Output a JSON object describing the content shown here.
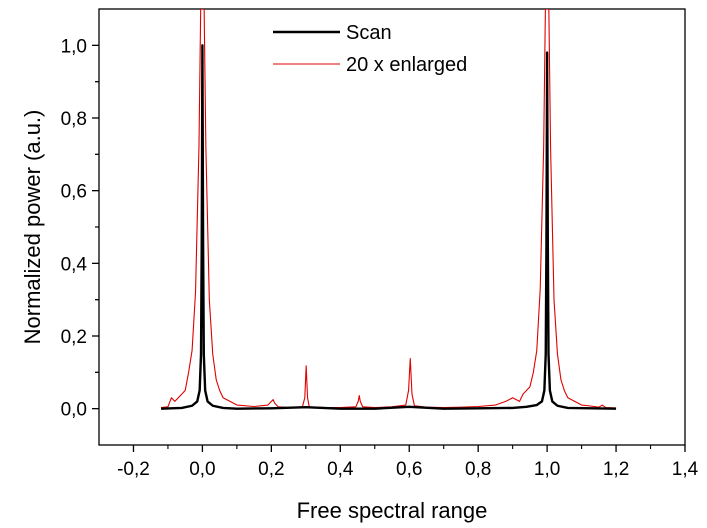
{
  "chart_data": {
    "type": "line",
    "xlabel": "Free spectral range",
    "ylabel": "Normalized power (a.u.)",
    "xlim": [
      -0.3,
      1.4
    ],
    "ylim": [
      -0.1,
      1.1
    ],
    "x_ticks": [
      "-0,2",
      "0,0",
      "0,2",
      "0,4",
      "0,6",
      "0,8",
      "1,0",
      "1,2",
      "1,4"
    ],
    "x_tick_values": [
      -0.2,
      0.0,
      0.2,
      0.4,
      0.6,
      0.8,
      1.0,
      1.2,
      1.4
    ],
    "y_ticks": [
      "0,0",
      "0,2",
      "0,4",
      "0,6",
      "0,8",
      "1,0"
    ],
    "y_tick_values": [
      0.0,
      0.2,
      0.4,
      0.6,
      0.8,
      1.0
    ],
    "grid": false,
    "legend_position": "top-center",
    "series": [
      {
        "name": "Scan",
        "color": "#000000",
        "x": [
          -0.12,
          -0.06,
          -0.03,
          -0.015,
          -0.008,
          -0.004,
          -0.002,
          0.0,
          0.002,
          0.004,
          0.008,
          0.015,
          0.03,
          0.06,
          0.1,
          0.2,
          0.3,
          0.4,
          0.5,
          0.6,
          0.7,
          0.8,
          0.9,
          0.94,
          0.97,
          0.985,
          0.992,
          0.996,
          0.998,
          1.0,
          1.002,
          1.004,
          1.008,
          1.015,
          1.03,
          1.06,
          1.2
        ],
        "y": [
          0.0,
          0.002,
          0.008,
          0.02,
          0.05,
          0.15,
          0.45,
          1.0,
          0.45,
          0.15,
          0.05,
          0.02,
          0.008,
          0.002,
          0.0,
          0.001,
          0.004,
          0.0,
          0.0,
          0.005,
          0.0,
          0.001,
          0.002,
          0.005,
          0.01,
          0.02,
          0.05,
          0.15,
          0.45,
          0.98,
          0.45,
          0.15,
          0.05,
          0.02,
          0.008,
          0.002,
          0.0
        ]
      },
      {
        "name": "20 x enlarged",
        "color": "#e00000",
        "x": [
          -0.12,
          -0.1,
          -0.09,
          -0.08,
          -0.06,
          -0.05,
          -0.04,
          -0.03,
          -0.02,
          -0.01,
          -0.005,
          0.005,
          0.01,
          0.02,
          0.03,
          0.04,
          0.05,
          0.06,
          0.08,
          0.1,
          0.15,
          0.19,
          0.205,
          0.21,
          0.22,
          0.25,
          0.29,
          0.297,
          0.301,
          0.305,
          0.31,
          0.35,
          0.4,
          0.445,
          0.452,
          0.455,
          0.458,
          0.465,
          0.5,
          0.55,
          0.59,
          0.598,
          0.603,
          0.608,
          0.615,
          0.65,
          0.7,
          0.75,
          0.8,
          0.85,
          0.88,
          0.9,
          0.92,
          0.93,
          0.95,
          0.96,
          0.97,
          0.98,
          0.99,
          0.995,
          1.005,
          1.01,
          1.02,
          1.03,
          1.04,
          1.05,
          1.06,
          1.08,
          1.1,
          1.12,
          1.15,
          1.16,
          1.17,
          1.2
        ],
        "y": [
          0.003,
          0.005,
          0.03,
          0.02,
          0.04,
          0.05,
          0.1,
          0.16,
          0.32,
          0.72,
          1.1,
          1.1,
          0.72,
          0.3,
          0.15,
          0.08,
          0.05,
          0.03,
          0.02,
          0.01,
          0.006,
          0.01,
          0.025,
          0.015,
          0.005,
          0.003,
          0.005,
          0.03,
          0.118,
          0.03,
          0.005,
          0.003,
          0.003,
          0.005,
          0.02,
          0.036,
          0.02,
          0.005,
          0.003,
          0.005,
          0.01,
          0.05,
          0.138,
          0.04,
          0.008,
          0.004,
          0.003,
          0.004,
          0.006,
          0.01,
          0.02,
          0.03,
          0.02,
          0.04,
          0.06,
          0.1,
          0.16,
          0.33,
          0.72,
          1.1,
          1.1,
          0.72,
          0.3,
          0.15,
          0.08,
          0.05,
          0.03,
          0.02,
          0.01,
          0.008,
          0.004,
          0.01,
          0.003,
          0.002
        ]
      }
    ]
  }
}
